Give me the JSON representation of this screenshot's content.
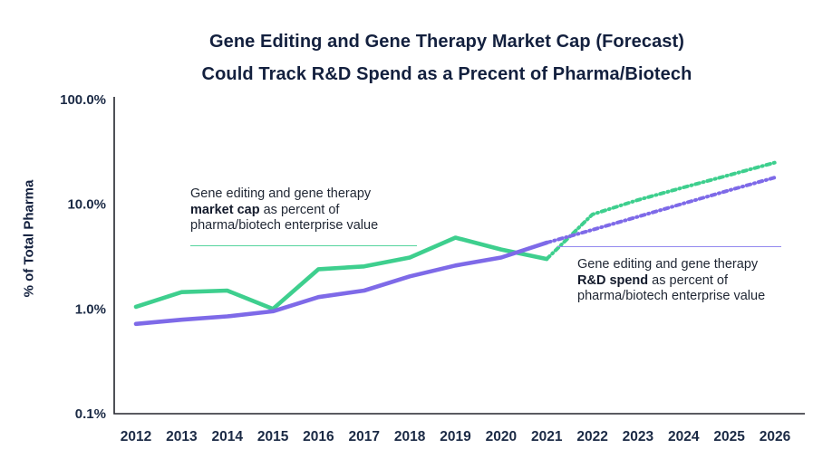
{
  "title": {
    "line1": "Gene Editing and Gene Therapy Market Cap (Forecast)",
    "line2": "Could Track R&D Spend as a Precent of Pharma/Biotech"
  },
  "y_axis": {
    "label": "% of Total Pharma",
    "ticks": [
      {
        "label": "100.0%",
        "value": 100
      },
      {
        "label": "10.0%",
        "value": 10
      },
      {
        "label": "1.0%",
        "value": 1
      },
      {
        "label": "0.1%",
        "value": 0.1
      }
    ]
  },
  "x_axis": {
    "years": [
      2012,
      2013,
      2014,
      2015,
      2016,
      2017,
      2018,
      2019,
      2020,
      2021,
      2022,
      2023,
      2024,
      2025,
      2026
    ]
  },
  "annotations": {
    "market_cap": {
      "line1": "Gene editing and gene therapy",
      "bold": "market cap",
      "line2_tail": " as percent of",
      "line3": "pharma/biotech enterprise value"
    },
    "rd_spend": {
      "line1": "Gene editing and gene therapy",
      "bold": "R&D spend",
      "line2_tail": " as percent of",
      "line3": "pharma/biotech enterprise value"
    }
  },
  "colors": {
    "green": "#3ecf8e",
    "green_rule": "#56d49e",
    "purple": "#7e6ae8",
    "purple_rule": "#9389ef",
    "axis": "#23252d",
    "tick_text": "#1b2a45"
  },
  "chart_data": {
    "type": "line",
    "title": "Gene Editing and Gene Therapy Market Cap (Forecast) Could Track R&D Spend as a Precent of Pharma/Biotech",
    "xlabel": "",
    "ylabel": "% of Total Pharma",
    "y_scale": "log",
    "ylim_percent": [
      0.1,
      100
    ],
    "y_ticks_percent": [
      0.1,
      1.0,
      10.0,
      100.0
    ],
    "x": [
      2012,
      2013,
      2014,
      2015,
      2016,
      2017,
      2018,
      2019,
      2020,
      2021,
      2022,
      2023,
      2024,
      2025,
      2026
    ],
    "legend_position": "inline-annotations",
    "grid": false,
    "series": [
      {
        "name": "Gene editing and gene therapy market cap as percent of pharma/biotech enterprise value",
        "color": "#3ecf8e",
        "actual_style": "solid",
        "forecast_style": "dotted",
        "actual": {
          "years": [
            2012,
            2013,
            2014,
            2015,
            2016,
            2017,
            2018,
            2019,
            2020,
            2021
          ],
          "values_percent": [
            1.05,
            1.45,
            1.5,
            1.0,
            2.4,
            2.55,
            3.1,
            4.8,
            3.7,
            3.0
          ]
        },
        "forecast": {
          "years": [
            2021,
            2022,
            2023,
            2024,
            2025,
            2026
          ],
          "values_percent": [
            3.0,
            8.0,
            11.0,
            14.5,
            19.0,
            25.0
          ]
        }
      },
      {
        "name": "Gene editing and gene therapy R&D spend as percent of pharma/biotech enterprise value",
        "color": "#7e6ae8",
        "actual_style": "solid",
        "forecast_style": "dotted",
        "actual": {
          "years": [
            2012,
            2013,
            2014,
            2015,
            2016,
            2017,
            2018,
            2019,
            2020,
            2021
          ],
          "values_percent": [
            0.72,
            0.79,
            0.85,
            0.95,
            1.3,
            1.5,
            2.05,
            2.6,
            3.1,
            4.3
          ]
        },
        "forecast": {
          "years": [
            2021,
            2022,
            2023,
            2024,
            2025,
            2026
          ],
          "values_percent": [
            4.3,
            5.7,
            7.6,
            10.2,
            13.6,
            18.0
          ]
        }
      }
    ]
  }
}
